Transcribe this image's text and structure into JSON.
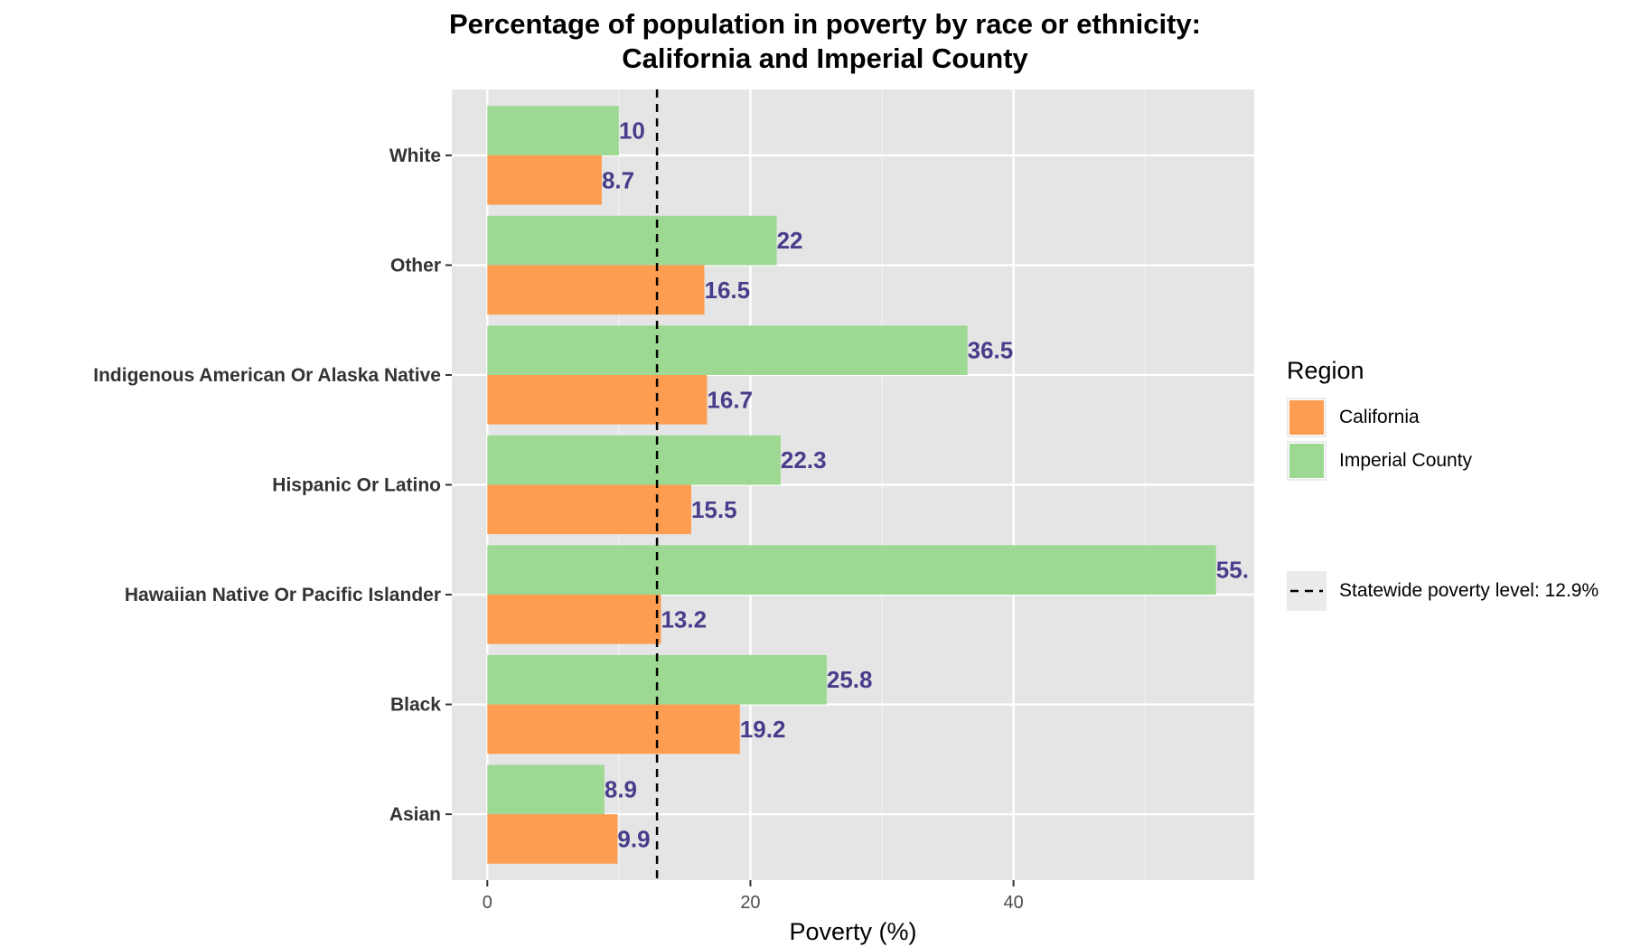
{
  "chart_data": {
    "type": "bar",
    "orientation": "horizontal",
    "title_lines": [
      "Percentage of population in poverty by race or ethnicity:",
      "California and Imperial County"
    ],
    "xlabel": "Poverty (%)",
    "ylabel": "",
    "xlim": [
      -2.7,
      58.3
    ],
    "x_ticks": [
      0,
      20,
      40
    ],
    "categories": [
      "White",
      "Other",
      "Indigenous American Or Alaska Native",
      "Hispanic Or Latino",
      "Hawaiian Native Or Pacific Islander",
      "Black",
      "Asian"
    ],
    "series": [
      {
        "name": "California",
        "color": "#fc9d51",
        "values": [
          8.7,
          16.5,
          16.7,
          15.5,
          13.2,
          19.2,
          9.9
        ],
        "labels": [
          "8.7",
          "16.5",
          "16.7",
          "15.5",
          "13.2",
          "19.2",
          "9.9"
        ]
      },
      {
        "name": "Imperial County",
        "color": "#9ed993",
        "values": [
          10,
          22,
          36.5,
          22.3,
          55.4,
          25.8,
          8.9
        ],
        "labels": [
          "10",
          "22",
          "36.5",
          "22.3",
          "55.",
          "25.8",
          "8.9"
        ]
      }
    ],
    "reference_line": {
      "value": 12.9,
      "style": "dashed",
      "label": "Statewide poverty level: 12.9%"
    },
    "legend": {
      "title": "Region",
      "placement": "right"
    },
    "grid": true,
    "panel_background": "#e5e5e5",
    "label_color": "#483d8b"
  }
}
